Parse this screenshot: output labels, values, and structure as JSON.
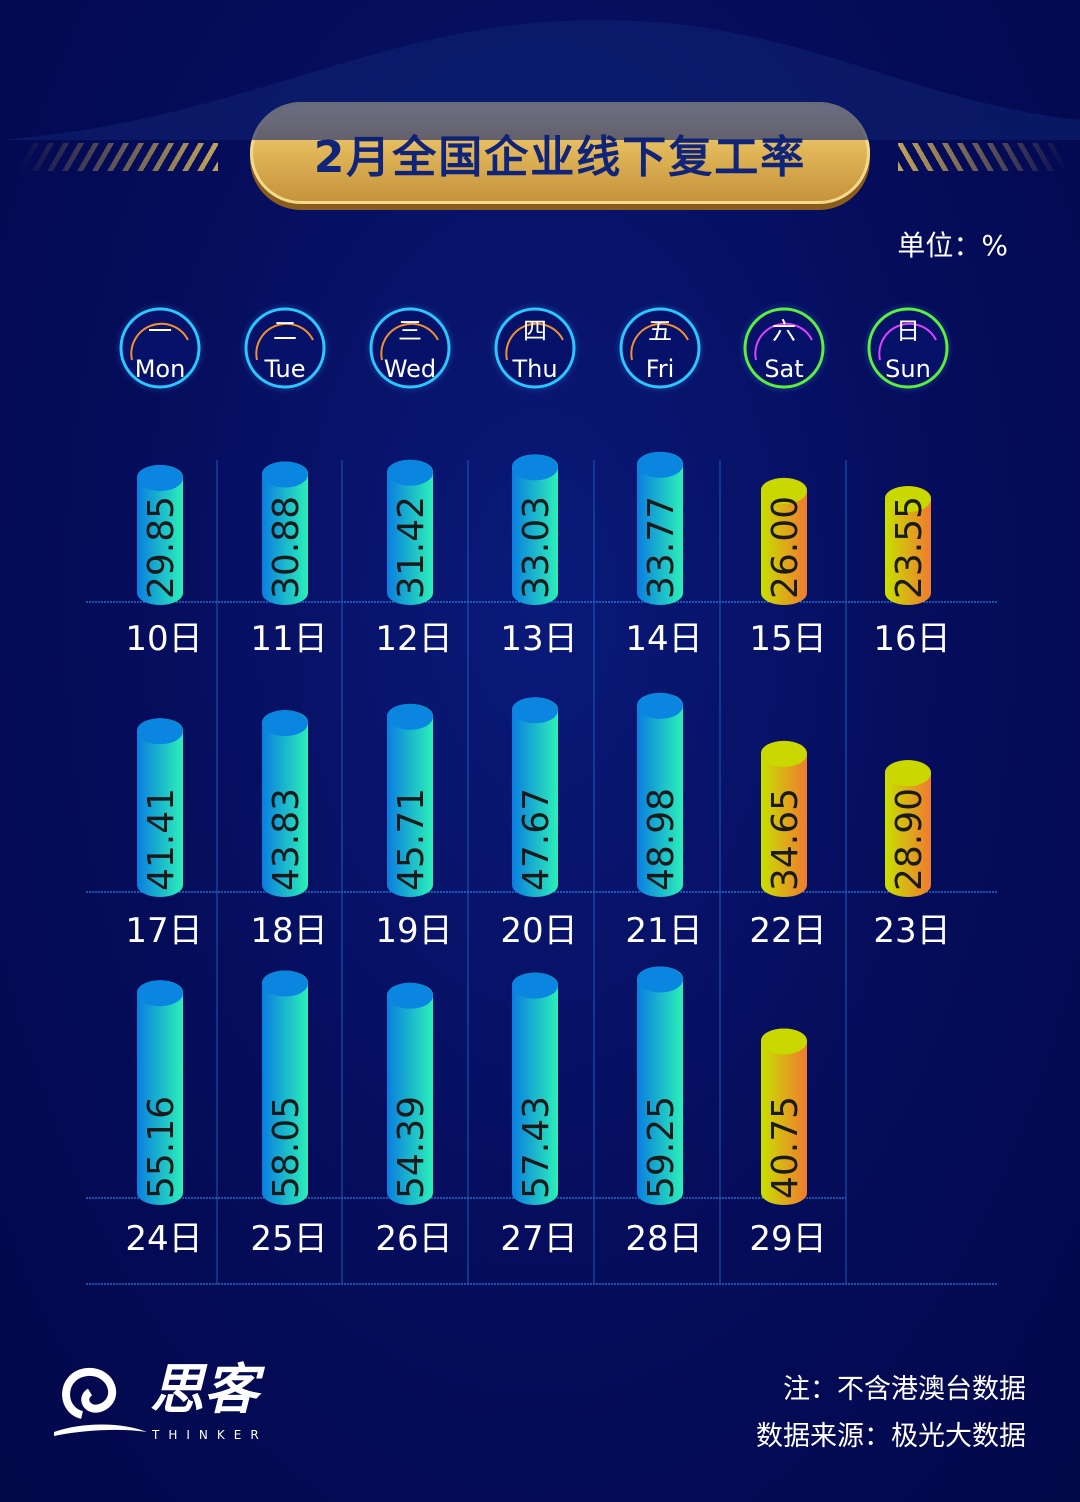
{
  "title": "2月全国企业线下复工率",
  "unit": "单位：%",
  "note": "注：不含港澳台数据",
  "source": "数据来源：极光大数据",
  "logo": {
    "cn": "思客",
    "en": "THINKER"
  },
  "colors": {
    "weekday_bar": [
      "#0a7de0",
      "#2cf0b8"
    ],
    "weekend_bar": [
      "#c8e000",
      "#f07a30"
    ],
    "background": "#050c5a"
  },
  "weekdays": [
    {
      "cn": "一",
      "en": "Mon"
    },
    {
      "cn": "二",
      "en": "Tue"
    },
    {
      "cn": "三",
      "en": "Wed"
    },
    {
      "cn": "四",
      "en": "Thu"
    },
    {
      "cn": "五",
      "en": "Fri"
    },
    {
      "cn": "六",
      "en": "Sat"
    },
    {
      "cn": "日",
      "en": "Sun"
    }
  ],
  "chart_data": {
    "type": "bar",
    "title": "2月全国企业线下复工率",
    "ylabel": "单位：%",
    "categories": [
      "10日",
      "11日",
      "12日",
      "13日",
      "14日",
      "15日",
      "16日",
      "17日",
      "18日",
      "19日",
      "20日",
      "21日",
      "22日",
      "23日",
      "24日",
      "25日",
      "26日",
      "27日",
      "28日",
      "29日"
    ],
    "values": [
      29.85,
      30.88,
      31.42,
      33.03,
      33.77,
      26.0,
      23.55,
      41.41,
      43.83,
      45.71,
      47.67,
      48.98,
      34.65,
      28.9,
      55.16,
      58.05,
      54.39,
      57.43,
      59.25,
      40.75
    ],
    "labels": [
      "29.85",
      "30.88",
      "31.42",
      "33.03",
      "33.77",
      "26.00",
      "23.55",
      "41.41",
      "43.83",
      "45.71",
      "47.67",
      "48.98",
      "34.65",
      "28.90",
      "55.16",
      "58.05",
      "54.39",
      "57.43",
      "59.25",
      "40.75"
    ]
  }
}
